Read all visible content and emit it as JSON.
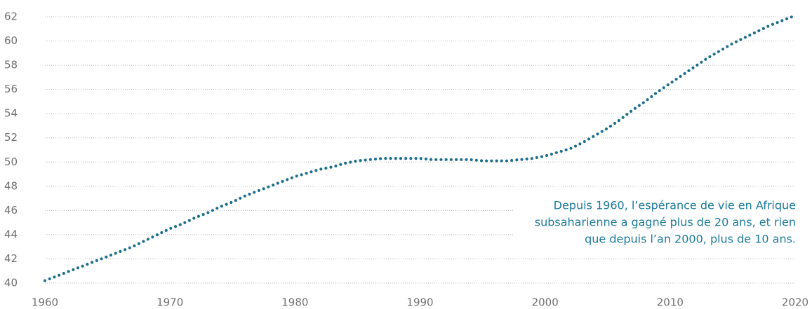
{
  "chart_data": {
    "type": "line",
    "x": [
      1960,
      1961,
      1962,
      1963,
      1964,
      1965,
      1966,
      1967,
      1968,
      1969,
      1970,
      1971,
      1972,
      1973,
      1974,
      1975,
      1976,
      1977,
      1978,
      1979,
      1980,
      1981,
      1982,
      1983,
      1984,
      1985,
      1986,
      1987,
      1988,
      1989,
      1990,
      1991,
      1992,
      1993,
      1994,
      1995,
      1996,
      1997,
      1998,
      1999,
      2000,
      2001,
      2002,
      2003,
      2004,
      2005,
      2006,
      2007,
      2008,
      2009,
      2010,
      2011,
      2012,
      2013,
      2014,
      2015,
      2016,
      2017,
      2018,
      2019,
      2020
    ],
    "series": [
      {
        "color": "#1b6e8c",
        "values": [
          40.2,
          40.6,
          41.0,
          41.4,
          41.8,
          42.2,
          42.6,
          43.0,
          43.5,
          44.0,
          44.5,
          44.9,
          45.4,
          45.8,
          46.3,
          46.7,
          47.2,
          47.6,
          48.0,
          48.4,
          48.8,
          49.1,
          49.4,
          49.6,
          49.9,
          50.1,
          50.2,
          50.3,
          50.3,
          50.3,
          50.3,
          50.2,
          50.2,
          50.2,
          50.2,
          50.1,
          50.1,
          50.1,
          50.2,
          50.3,
          50.5,
          50.8,
          51.1,
          51.6,
          52.2,
          52.8,
          53.5,
          54.3,
          55.0,
          55.8,
          56.5,
          57.2,
          57.9,
          58.6,
          59.2,
          59.8,
          60.3,
          60.8,
          61.3,
          61.7,
          62.1
        ]
      }
    ],
    "xlim": [
      1960,
      2020
    ],
    "xticks": [
      1960,
      1970,
      1980,
      1990,
      2000,
      2010,
      2020
    ],
    "ylim": [
      40,
      62
    ],
    "yticks": [
      40,
      42,
      44,
      46,
      48,
      50,
      52,
      54,
      56,
      58,
      60,
      62
    ],
    "grid": true,
    "annotation": [
      "Depuis 1960, l’espérance de vie en Afrique",
      "subsaharienne a gagné plus de 20 ans, et rien",
      "que depuis l’an 2000, plus de 10 ans."
    ],
    "annotation_color": "#1b7a9c"
  }
}
